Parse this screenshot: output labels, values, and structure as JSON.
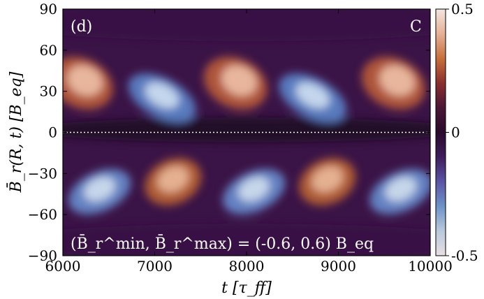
{
  "chart_data": {
    "type": "heatmap",
    "panel_label": "(d)",
    "corner_label": "C",
    "xlabel": "t [τ_ff]",
    "ylabel": "B̄_r(R, t) [B_eq]",
    "xlim": [
      6000,
      10000
    ],
    "ylim": [
      -90,
      90
    ],
    "x_ticks": [
      "6000",
      "7000",
      "8000",
      "9000",
      "10000"
    ],
    "y_ticks": [
      "90",
      "60",
      "30",
      "0",
      "−30",
      "−60",
      "−90"
    ],
    "colorbar": {
      "min": -0.5,
      "max": 0.5,
      "ticks": [
        "0.5",
        "0",
        "-0.5"
      ]
    },
    "annotation": "(B̄_r^min, B̄_r^max) = (-0.6, 0.6) B_eq",
    "equator_line": {
      "y": 0,
      "style": "dotted"
    },
    "colormap": [
      "#e8dfe2",
      "#b9c9dc",
      "#6d93c8",
      "#5a54a6",
      "#3f1d5c",
      "#2a0a2c",
      "#4a1636",
      "#8c2f2e",
      "#c8703a",
      "#e6b196",
      "#f3e6e0"
    ]
  }
}
